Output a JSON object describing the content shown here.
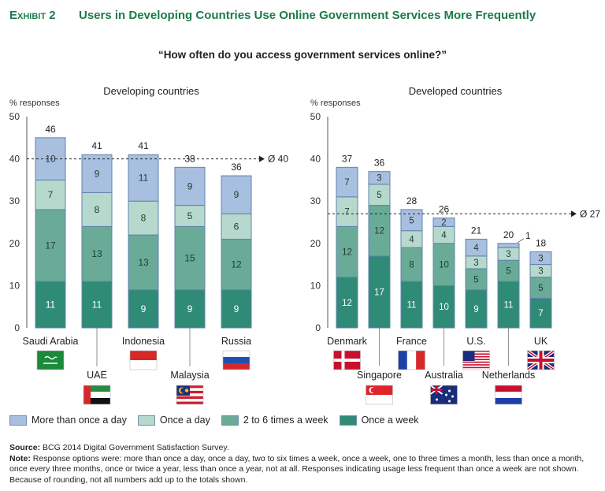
{
  "exhibit": {
    "label": "Exhibit 2",
    "title": "Users in Developing Countries Use Online Government Services More Frequently"
  },
  "question": "“How often do you access government services online?”",
  "colors": {
    "more_than_once_a_day": "#a9bfdf",
    "once_a_day": "#b7d9cd",
    "two_to_six_week": "#6aab97",
    "once_a_week": "#2f8b76",
    "title_green": "#1e7a4a"
  },
  "chart_data": [
    {
      "type": "bar",
      "stacked": true,
      "title": "Developing countries",
      "ylabel": "% responses",
      "ylim": [
        0,
        50
      ],
      "yticks": [
        "0",
        "10",
        "20",
        "30",
        "40",
        "50"
      ],
      "categories": [
        "Saudi Arabia",
        "UAE",
        "Indonesia",
        "Malaysia",
        "Russia"
      ],
      "series": [
        {
          "name": "Once a week",
          "values": [
            11,
            11,
            9,
            9,
            9
          ]
        },
        {
          "name": "2 to 6 times a week",
          "values": [
            17,
            13,
            13,
            15,
            12
          ]
        },
        {
          "name": "Once a day",
          "values": [
            7,
            8,
            8,
            5,
            6
          ]
        },
        {
          "name": "More than once a day",
          "values": [
            10,
            9,
            11,
            9,
            9
          ]
        }
      ],
      "totals": [
        46,
        41,
        41,
        38,
        36
      ],
      "average": {
        "value": 40,
        "label": "Ø 40"
      },
      "flags": [
        "saudi-arabia-flag",
        "uae-flag",
        "indonesia-flag",
        "malaysia-flag",
        "russia-flag"
      ]
    },
    {
      "type": "bar",
      "stacked": true,
      "title": "Developed countries",
      "ylabel": "% responses",
      "ylim": [
        0,
        50
      ],
      "yticks": [
        "0",
        "10",
        "20",
        "30",
        "40",
        "50"
      ],
      "categories": [
        "Denmark",
        "Singapore",
        "France",
        "Australia",
        "U.S.",
        "Netherlands",
        "UK"
      ],
      "series": [
        {
          "name": "Once a week",
          "values": [
            12,
            17,
            11,
            10,
            9,
            11,
            7
          ]
        },
        {
          "name": "2 to 6 times a week",
          "values": [
            12,
            12,
            8,
            10,
            5,
            5,
            5
          ]
        },
        {
          "name": "Once a day",
          "values": [
            7,
            5,
            4,
            4,
            3,
            3,
            3
          ]
        },
        {
          "name": "More than once a day",
          "values": [
            7,
            3,
            5,
            2,
            4,
            1,
            3
          ]
        }
      ],
      "totals": [
        37,
        36,
        28,
        26,
        21,
        20,
        18
      ],
      "average": {
        "value": 27,
        "label": "Ø 27"
      },
      "flags": [
        "denmark-flag",
        "singapore-flag",
        "france-flag",
        "australia-flag",
        "us-flag",
        "netherlands-flag",
        "uk-flag"
      ]
    }
  ],
  "legend": [
    {
      "label": "More than once a day",
      "key": "more_than_once_a_day"
    },
    {
      "label": "Once a day",
      "key": "once_a_day"
    },
    {
      "label": "2 to 6 times a week",
      "key": "two_to_six_week"
    },
    {
      "label": "Once a week",
      "key": "once_a_week"
    }
  ],
  "footer": {
    "source_label": "Source:",
    "source_text": "BCG 2014 Digital Government Satisfaction Survey.",
    "note_label": "Note:",
    "note_text": "Response options were: more than once a day, once a day, two to six times a week, once a week, one to three times a month, less than once a month, once every three months, once or twice a year, less than once a year, not at all. Responses indicating usage less frequent than once a week are not shown. Because of rounding, not all numbers add up to the totals shown."
  }
}
